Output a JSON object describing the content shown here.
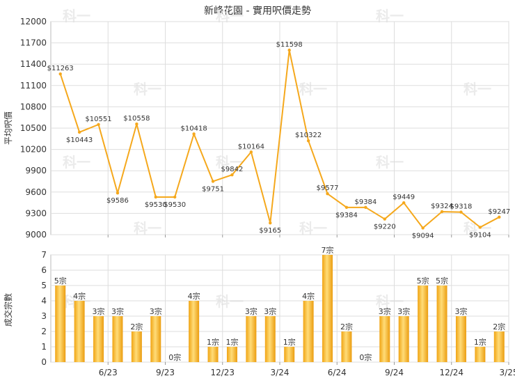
{
  "chart_data": [
    {
      "type": "line",
      "title": "新峰花園 - 實用呎價走勢",
      "ylabel": "平均呎價",
      "ylim": [
        9000,
        12000
      ],
      "yticks": [
        9000,
        9300,
        9600,
        9900,
        10200,
        10500,
        10800,
        11100,
        11400,
        11700,
        12000
      ],
      "x_tick_labels": [
        "6/23",
        "9/23",
        "12/23",
        "3/24",
        "6/24",
        "9/24",
        "12/24",
        "3/25"
      ],
      "values": [
        11263,
        10443,
        10551,
        9586,
        10558,
        9530,
        9530,
        10418,
        9751,
        9842,
        10164,
        9165,
        11598,
        10322,
        9577,
        9384,
        9384,
        9220,
        9449,
        9094,
        9324,
        9318,
        9104,
        9247
      ],
      "point_labels": [
        "$11263",
        "$10443",
        "$10551",
        "$9586",
        "$10558",
        "$9530",
        "$9530",
        "$10418",
        "$9751",
        "$9842",
        "$10164",
        "$9165",
        "$11598",
        "$10322",
        "$9577",
        "$9384",
        "$9384",
        "$9220",
        "$9449",
        "$9094",
        "$9324",
        "$9318",
        "$9104",
        "$9247"
      ],
      "color": "#f5a81c",
      "grid": true
    },
    {
      "type": "bar",
      "ylabel": "成交宗數",
      "ylim": [
        0,
        7
      ],
      "yticks": [
        0,
        1,
        2,
        3,
        4,
        5,
        6,
        7
      ],
      "x_tick_labels": [
        "6/23",
        "9/23",
        "12/23",
        "3/24",
        "6/24",
        "9/24",
        "12/24",
        "3/25"
      ],
      "values": [
        5,
        4,
        3,
        3,
        2,
        3,
        0,
        4,
        1,
        1,
        3,
        3,
        1,
        4,
        7,
        2,
        0,
        3,
        3,
        5,
        5,
        3,
        1,
        2
      ],
      "bar_labels": [
        "5宗",
        "4宗",
        "3宗",
        "3宗",
        "2宗",
        "3宗",
        "0宗",
        "4宗",
        "1宗",
        "1宗",
        "3宗",
        "3宗",
        "1宗",
        "4宗",
        "7宗",
        "2宗",
        "0宗",
        "3宗",
        "3宗",
        "5宗",
        "5宗",
        "3宗",
        "1宗",
        "2宗"
      ],
      "color": "#f5a81c",
      "grid": true
    }
  ],
  "watermark": "科一"
}
